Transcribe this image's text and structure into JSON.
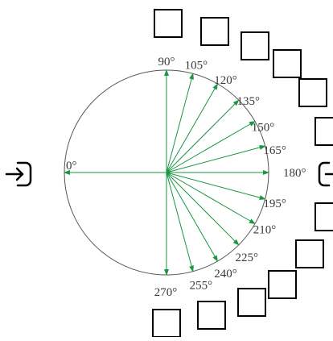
{
  "diagram": {
    "colors": {
      "ray": "#1a9641",
      "circle": "#555555",
      "label": "#3a3a3a",
      "box": "#000000"
    },
    "rays": [
      {
        "angle": 0,
        "label": "0°"
      },
      {
        "angle": 90,
        "label": "90°"
      },
      {
        "angle": 105,
        "label": "105°"
      },
      {
        "angle": 120,
        "label": "120°"
      },
      {
        "angle": 135,
        "label": "135°"
      },
      {
        "angle": 150,
        "label": "150°"
      },
      {
        "angle": 165,
        "label": "165°"
      },
      {
        "angle": 180,
        "label": "180°"
      },
      {
        "angle": 195,
        "label": "195°"
      },
      {
        "angle": 210,
        "label": "210°"
      },
      {
        "angle": 225,
        "label": "225°"
      },
      {
        "angle": 240,
        "label": "240°"
      },
      {
        "angle": 255,
        "label": "255°"
      },
      {
        "angle": 270,
        "label": "270°"
      }
    ],
    "icons": {
      "left": "enter-icon",
      "right": "exit-icon"
    }
  }
}
